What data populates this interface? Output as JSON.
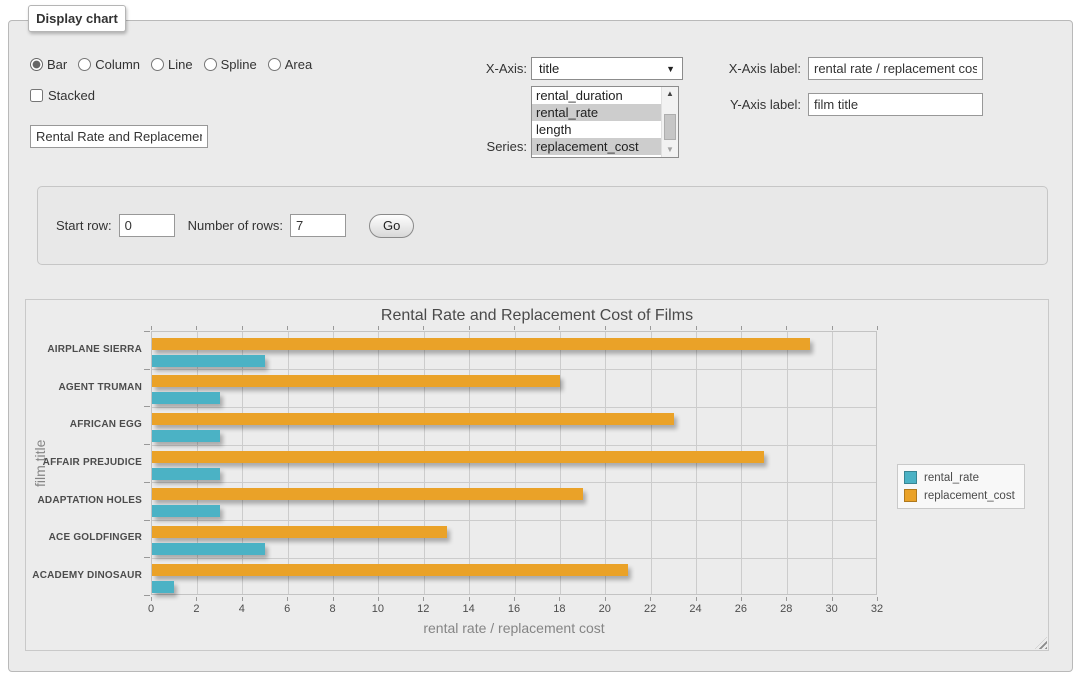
{
  "panel": {
    "tab_label": "Display chart",
    "chart_types": {
      "options": [
        "Bar",
        "Column",
        "Line",
        "Spline",
        "Area"
      ],
      "selected": "Bar"
    },
    "stacked": {
      "label": "Stacked",
      "checked": false
    },
    "chart_title_input": {
      "value": "Rental Rate and Replacement Cost of Films"
    },
    "x_axis": {
      "label": "X-Axis:",
      "selected": "title"
    },
    "series_select": {
      "label": "Series:",
      "options": [
        {
          "label": "rental_duration",
          "selected": false
        },
        {
          "label": "rental_rate",
          "selected": true
        },
        {
          "label": "length",
          "selected": false
        },
        {
          "label": "replacement_cost",
          "selected": true
        }
      ]
    },
    "x_axis_label": {
      "label": "X-Axis label:",
      "value": "rental rate / replacement cost"
    },
    "y_axis_label": {
      "label": "Y-Axis label:",
      "value": "film title"
    }
  },
  "row_controls": {
    "start_row_label": "Start row:",
    "start_row_value": "0",
    "num_rows_label": "Number of rows:",
    "num_rows_value": "7",
    "go_label": "Go"
  },
  "icons": {
    "dropdown_arrow": "▼",
    "scroll_up": "▲",
    "scroll_down": "▼"
  },
  "chart_data": {
    "type": "bar",
    "orientation": "horizontal",
    "title": "Rental Rate and Replacement Cost of Films",
    "xlabel": "rental rate / replacement cost",
    "ylabel": "film title",
    "categories": [
      "AIRPLANE SIERRA",
      "AGENT TRUMAN",
      "AFRICAN EGG",
      "AFFAIR PREJUDICE",
      "ADAPTATION HOLES",
      "ACE GOLDFINGER",
      "ACADEMY DINOSAUR"
    ],
    "series": [
      {
        "name": "rental_rate",
        "color": "#4bb2c5",
        "values": [
          4.99,
          2.99,
          2.99,
          2.99,
          2.99,
          4.99,
          0.99
        ]
      },
      {
        "name": "replacement_cost",
        "color": "#eaa228",
        "values": [
          28.99,
          17.99,
          22.99,
          26.99,
          18.99,
          12.99,
          20.99
        ]
      }
    ],
    "xlim": [
      0,
      32
    ],
    "xtick_step": 2,
    "grid": true,
    "legend_position": "right",
    "bar_order_top_to_bottom": [
      "replacement_cost",
      "rental_rate"
    ]
  }
}
